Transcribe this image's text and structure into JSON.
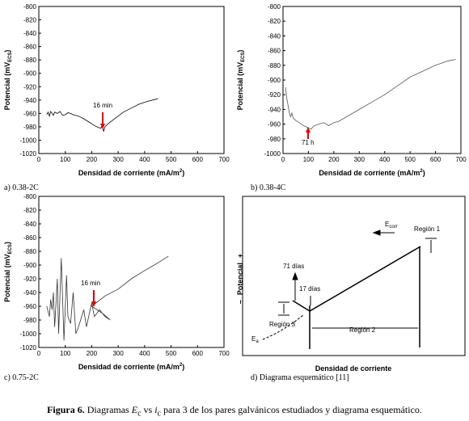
{
  "chart_data": [
    {
      "type": "line",
      "caption": "a) 0.38-2C",
      "x_label": "Densidad de corriente (mA/m",
      "x_label_sup": "2",
      "x_label_end": ")",
      "y_label": "Potencial (mV",
      "y_label_sub": "ECS",
      "y_label_end": ")",
      "annotation": "16 min",
      "xlim": [
        0,
        700
      ],
      "xticks": [
        0,
        100,
        200,
        300,
        400,
        500,
        600,
        700
      ],
      "ylim": [
        -1020,
        -800
      ],
      "yticks": [
        -800,
        -820,
        -840,
        -860,
        -880,
        -900,
        -920,
        -940,
        -960,
        -980,
        -1000,
        -1020
      ],
      "x": [
        30,
        35,
        40,
        45,
        50,
        55,
        60,
        70,
        80,
        90,
        100,
        110,
        120,
        130,
        150,
        170,
        190,
        210,
        225,
        235,
        240,
        245,
        250,
        260,
        280,
        300,
        320,
        350,
        380,
        410,
        450
      ],
      "series": [
        {
          "color": "#000000",
          "values": [
            -962,
            -958,
            -964,
            -957,
            -960,
            -963,
            -958,
            -960,
            -957,
            -963,
            -962,
            -959,
            -960,
            -962,
            -964,
            -968,
            -973,
            -978,
            -981,
            -982,
            -978,
            -987,
            -980,
            -976,
            -970,
            -964,
            -958,
            -952,
            -946,
            -942,
            -938
          ]
        }
      ],
      "annotation_color": "#e00000"
    },
    {
      "type": "line",
      "caption": "b) 0.38-4C",
      "x_label": "Densidad de corriente (mA/m",
      "x_label_sup": "2",
      "x_label_end": ")",
      "y_label": "Potencial (mV",
      "y_label_sub": "ECS",
      "y_label_end": ")",
      "annotation": "71 h",
      "xlim": [
        0,
        700
      ],
      "xticks": [
        0,
        100,
        200,
        300,
        400,
        500,
        600,
        700
      ],
      "ylim": [
        -1000,
        -800
      ],
      "yticks": [
        -800,
        -820,
        -840,
        -860,
        -880,
        -900,
        -920,
        -940,
        -960,
        -980,
        -1000
      ],
      "x": [
        10,
        15,
        20,
        25,
        30,
        35,
        40,
        50,
        60,
        80,
        100,
        110,
        120,
        140,
        160,
        180,
        200,
        220,
        250,
        300,
        350,
        400,
        450,
        500,
        550,
        600,
        650,
        680
      ],
      "series": [
        {
          "color": "#555555",
          "values": [
            -910,
            -925,
            -935,
            -945,
            -950,
            -945,
            -952,
            -955,
            -957,
            -962,
            -965,
            -967,
            -963,
            -960,
            -958,
            -962,
            -958,
            -956,
            -950,
            -940,
            -930,
            -920,
            -908,
            -896,
            -888,
            -880,
            -874,
            -872
          ]
        }
      ],
      "annotation_color": "#e00000"
    },
    {
      "type": "line",
      "caption": "c) 0.75-2C",
      "x_label": "Densidad de corriente (mA/m",
      "x_label_sup": "2",
      "x_label_end": ")",
      "y_label": "Potencial (mV",
      "y_label_sub": "ECS",
      "y_label_end": ")",
      "annotation": "16 min",
      "xlim": [
        0,
        700
      ],
      "xticks": [
        0,
        100,
        200,
        300,
        400,
        500,
        600,
        700
      ],
      "ylim": [
        -1020,
        -800
      ],
      "yticks": [
        -800,
        -820,
        -840,
        -860,
        -880,
        -900,
        -920,
        -940,
        -960,
        -980,
        -1000,
        -1020
      ],
      "x": [
        30,
        40,
        45,
        50,
        55,
        60,
        70,
        75,
        85,
        95,
        105,
        110,
        120,
        130,
        140,
        150,
        170,
        180,
        200,
        210,
        230,
        250,
        270,
        240,
        200,
        250,
        300,
        350,
        400,
        450,
        490
      ],
      "series": [
        {
          "color": "#333333",
          "values": [
            -960,
            -975,
            -950,
            -965,
            -940,
            -990,
            -920,
            -1000,
            -890,
            -1010,
            -915,
            -975,
            -985,
            -940,
            -1000,
            -990,
            -965,
            -990,
            -955,
            -975,
            -965,
            -975,
            -980,
            -970,
            -960,
            -945,
            -935,
            -920,
            -908,
            -897,
            -887
          ]
        }
      ],
      "annotation_color": "#e00000"
    }
  ],
  "diagram": {
    "caption": "d) Diagrama esquemático [11]",
    "y_label_minus": "–",
    "y_label": "Potencial",
    "y_label_plus": "+",
    "x_label": "Densidad de corriente",
    "ecorr": "E",
    "ecorr_sub": "corr",
    "ea": "E",
    "ea_sub": "a",
    "region_1": "Región 1",
    "region_2": "Región 2",
    "region_3": "Región 3",
    "days_71": "71 días",
    "days_17": "17 días"
  },
  "figure_caption": {
    "label": "Figura 6.",
    "text_1": " Diagramas ",
    "e": "E",
    "e_sub": "c",
    "text_2": " vs ",
    "i": "i",
    "i_sub": "c",
    "text_3": " para 3 de los pares galvánicos estudiados y diagrama esquemático."
  }
}
